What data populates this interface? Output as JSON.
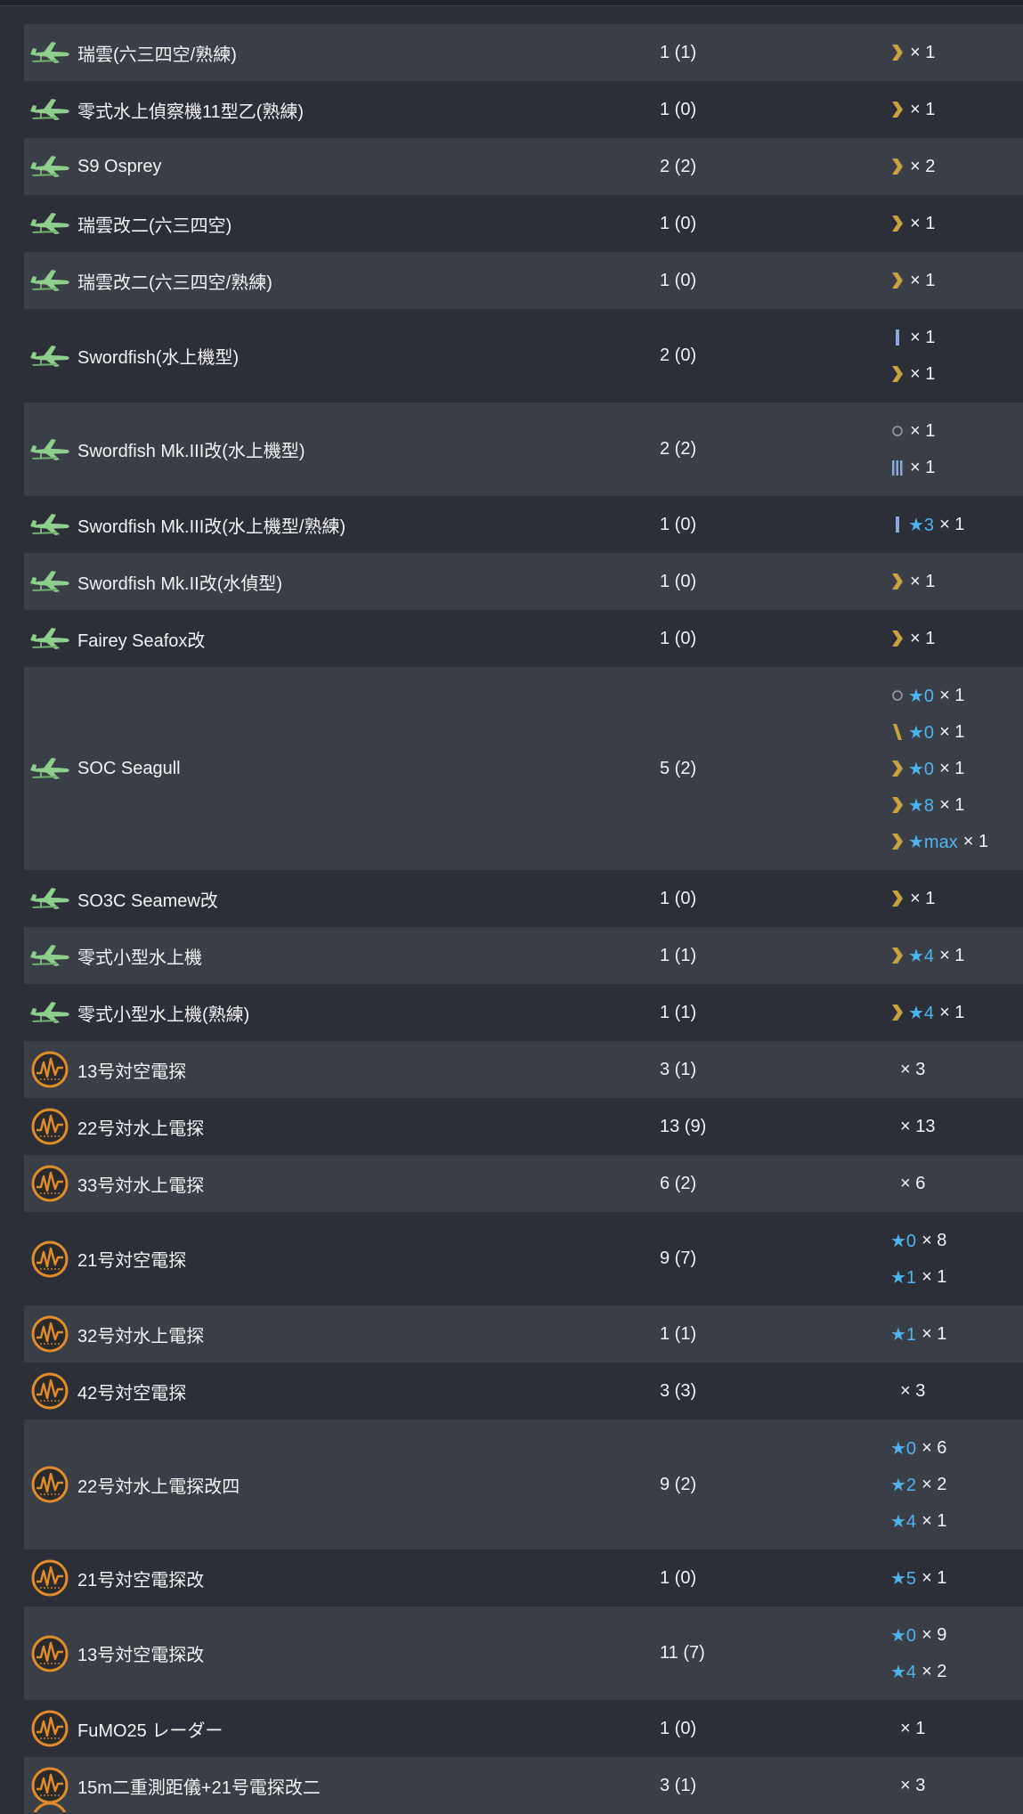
{
  "colors": {
    "star": "#4fb3ee",
    "chevron": "#c9a23e",
    "seaplane_icon": "#8ecf8e",
    "radar_icon": "#e08c2c"
  },
  "rows": [
    {
      "icon": "seaplane-icon",
      "name": "瑞雲(六三四空/熟練)",
      "count": "1 (1)",
      "prof": [
        {
          "icon": "chevron",
          "star": "",
          "mult": "× 1"
        }
      ]
    },
    {
      "icon": "seaplane-icon",
      "name": "零式水上偵察機11型乙(熟練)",
      "count": "1 (0)",
      "prof": [
        {
          "icon": "chevron",
          "star": "",
          "mult": "× 1"
        }
      ]
    },
    {
      "icon": "seaplane-icon",
      "name": "S9 Osprey",
      "count": "2 (2)",
      "prof": [
        {
          "icon": "chevron",
          "star": "",
          "mult": "× 2"
        }
      ]
    },
    {
      "icon": "seaplane-icon",
      "name": "瑞雲改二(六三四空)",
      "count": "1 (0)",
      "prof": [
        {
          "icon": "chevron",
          "star": "",
          "mult": "× 1"
        }
      ]
    },
    {
      "icon": "seaplane-icon",
      "name": "瑞雲改二(六三四空/熟練)",
      "count": "1 (0)",
      "prof": [
        {
          "icon": "chevron",
          "star": "",
          "mult": "× 1"
        }
      ]
    },
    {
      "icon": "seaplane-icon",
      "name": "Swordfish(水上機型)",
      "count": "2 (0)",
      "prof": [
        {
          "icon": "bar1",
          "star": "",
          "mult": "× 1"
        },
        {
          "icon": "chevron",
          "star": "",
          "mult": "× 1"
        }
      ]
    },
    {
      "icon": "seaplane-icon",
      "name": "Swordfish Mk.III改(水上機型)",
      "count": "2 (2)",
      "prof": [
        {
          "icon": "circle",
          "star": "",
          "mult": "× 1"
        },
        {
          "icon": "bar3",
          "star": "",
          "mult": "× 1"
        }
      ]
    },
    {
      "icon": "seaplane-icon",
      "name": "Swordfish Mk.III改(水上機型/熟練)",
      "count": "1 (0)",
      "prof": [
        {
          "icon": "bar1",
          "star": "★3",
          "mult": "× 1"
        }
      ]
    },
    {
      "icon": "seaplane-icon",
      "name": "Swordfish Mk.II改(水偵型)",
      "count": "1 (0)",
      "prof": [
        {
          "icon": "chevron",
          "star": "",
          "mult": "× 1"
        }
      ]
    },
    {
      "icon": "seaplane-icon",
      "name": "Fairey Seafox改",
      "count": "1 (0)",
      "prof": [
        {
          "icon": "chevron",
          "star": "",
          "mult": "× 1"
        }
      ]
    },
    {
      "icon": "seaplane-icon",
      "name": "SOC Seagull",
      "count": "5 (2)",
      "prof": [
        {
          "icon": "circle",
          "star": "★0",
          "mult": "× 1"
        },
        {
          "icon": "slash",
          "star": "★0",
          "mult": "× 1"
        },
        {
          "icon": "chevron",
          "star": "★0",
          "mult": "× 1"
        },
        {
          "icon": "chevron",
          "star": "★8",
          "mult": "× 1"
        },
        {
          "icon": "chevron",
          "star": "★max",
          "mult": "× 1"
        }
      ]
    },
    {
      "icon": "seaplane-icon",
      "name": "SO3C Seamew改",
      "count": "1 (0)",
      "prof": [
        {
          "icon": "chevron",
          "star": "",
          "mult": "× 1"
        }
      ]
    },
    {
      "icon": "seaplane-icon",
      "name": "零式小型水上機",
      "count": "1 (1)",
      "prof": [
        {
          "icon": "chevron",
          "star": "★4",
          "mult": "× 1"
        }
      ]
    },
    {
      "icon": "seaplane-icon",
      "name": "零式小型水上機(熟練)",
      "count": "1 (1)",
      "prof": [
        {
          "icon": "chevron",
          "star": "★4",
          "mult": "× 1"
        }
      ]
    },
    {
      "icon": "radar-icon",
      "name": "13号対空電探",
      "count": "3 (1)",
      "prof": [
        {
          "icon": "",
          "star": "",
          "mult": "× 3"
        }
      ]
    },
    {
      "icon": "radar-icon",
      "name": "22号対水上電探",
      "count": "13 (9)",
      "prof": [
        {
          "icon": "",
          "star": "",
          "mult": "× 13"
        }
      ]
    },
    {
      "icon": "radar-icon",
      "name": "33号対水上電探",
      "count": "6 (2)",
      "prof": [
        {
          "icon": "",
          "star": "",
          "mult": "× 6"
        }
      ]
    },
    {
      "icon": "radar-icon",
      "name": "21号対空電探",
      "count": "9 (7)",
      "prof": [
        {
          "icon": "",
          "star": "★0",
          "mult": "× 8"
        },
        {
          "icon": "",
          "star": "★1",
          "mult": "× 1"
        }
      ]
    },
    {
      "icon": "radar-icon",
      "name": "32号対水上電探",
      "count": "1 (1)",
      "prof": [
        {
          "icon": "",
          "star": "★1",
          "mult": "× 1"
        }
      ]
    },
    {
      "icon": "radar-icon",
      "name": "42号対空電探",
      "count": "3 (3)",
      "prof": [
        {
          "icon": "",
          "star": "",
          "mult": "× 3"
        }
      ]
    },
    {
      "icon": "radar-icon",
      "name": "22号対水上電探改四",
      "count": "9 (2)",
      "prof": [
        {
          "icon": "",
          "star": "★0",
          "mult": "× 6"
        },
        {
          "icon": "",
          "star": "★2",
          "mult": "× 2"
        },
        {
          "icon": "",
          "star": "★4",
          "mult": "× 1"
        }
      ]
    },
    {
      "icon": "radar-icon",
      "name": "21号対空電探改",
      "count": "1 (0)",
      "prof": [
        {
          "icon": "",
          "star": "★5",
          "mult": "× 1"
        }
      ]
    },
    {
      "icon": "radar-icon",
      "name": "13号対空電探改",
      "count": "11 (7)",
      "prof": [
        {
          "icon": "",
          "star": "★0",
          "mult": "× 9"
        },
        {
          "icon": "",
          "star": "★4",
          "mult": "× 2"
        }
      ]
    },
    {
      "icon": "radar-icon",
      "name": "FuMO25 レーダー",
      "count": "1 (0)",
      "prof": [
        {
          "icon": "",
          "star": "",
          "mult": "× 1"
        }
      ]
    },
    {
      "icon": "radar-icon",
      "name": "15m二重測距儀+21号電探改二",
      "count": "3 (1)",
      "prof": [
        {
          "icon": "",
          "star": "",
          "mult": "× 3"
        }
      ]
    }
  ]
}
